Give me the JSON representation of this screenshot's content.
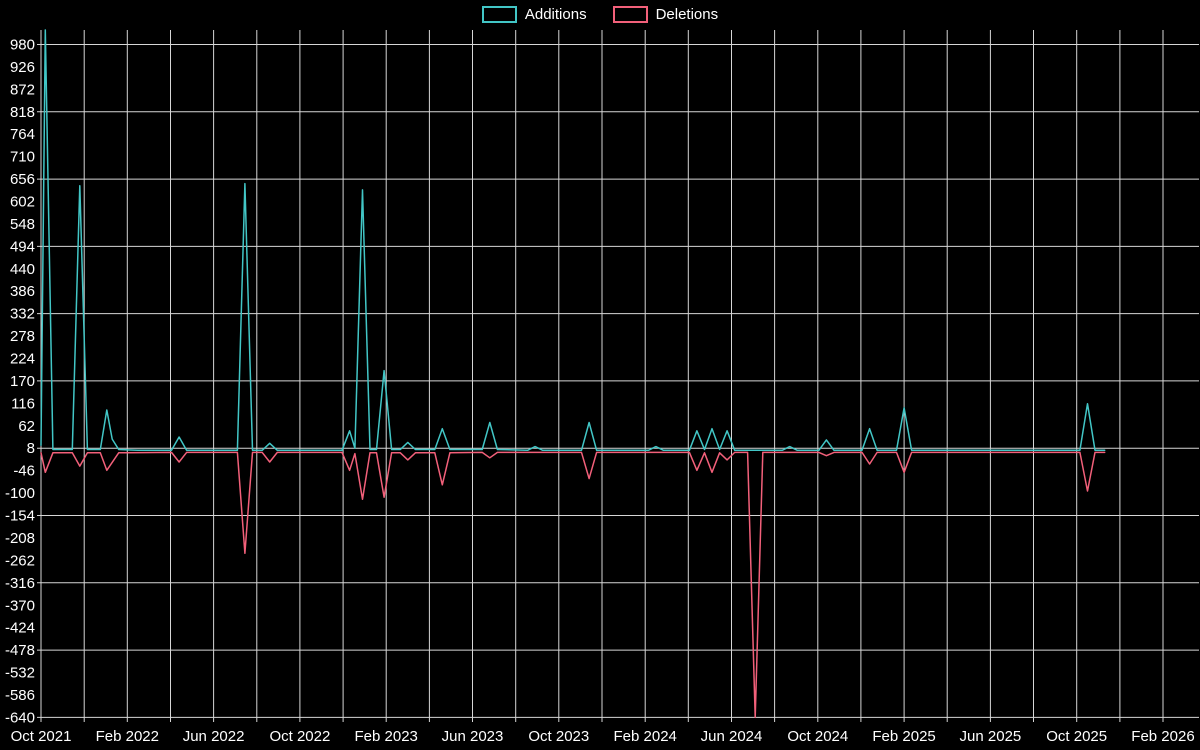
{
  "chart_data": {
    "type": "line",
    "title": "",
    "background_color": "#000000",
    "grid_color": "#d6d6d6",
    "text_color": "#ffffff",
    "legend_position": "top-center",
    "x_axis": {
      "unit": "month",
      "total_months": 52,
      "tick_interval_months": 4,
      "gridline_interval_months": 2,
      "tick_labels": [
        "Oct 2021",
        "Feb 2022",
        "Jun 2022",
        "Oct 2022",
        "Feb 2023",
        "Jun 2023",
        "Oct 2023",
        "Feb 2024",
        "Jun 2024",
        "Oct 2024",
        "Feb 2025",
        "Jun 2025",
        "Oct 2025",
        "Feb 2026"
      ]
    },
    "y_axis": {
      "min": -640,
      "max": 980,
      "tick_step": 54,
      "tick_values": [
        980,
        926,
        872,
        818,
        764,
        710,
        656,
        602,
        548,
        494,
        440,
        386,
        332,
        278,
        224,
        170,
        116,
        62,
        8,
        -46,
        -100,
        -154,
        -208,
        -262,
        -316,
        -370,
        -424,
        -478,
        -532,
        -586,
        -640
      ],
      "gridline_values": [
        980,
        818,
        656,
        494,
        332,
        170,
        8,
        -154,
        -316,
        -478,
        -640
      ]
    },
    "series": [
      {
        "name": "Additions",
        "color": "#42c6c6",
        "points": [
          [
            0,
            15
          ],
          [
            0.2,
            1030
          ],
          [
            0.55,
            5
          ],
          [
            1.45,
            5
          ],
          [
            1.8,
            640
          ],
          [
            2.15,
            5
          ],
          [
            2.75,
            5
          ],
          [
            3.05,
            100
          ],
          [
            3.3,
            30
          ],
          [
            3.6,
            5
          ],
          [
            4.5,
            3
          ],
          [
            6.05,
            3
          ],
          [
            6.4,
            35
          ],
          [
            6.75,
            3
          ],
          [
            9.1,
            3
          ],
          [
            9.45,
            645
          ],
          [
            9.8,
            3
          ],
          [
            10.25,
            3
          ],
          [
            10.6,
            20
          ],
          [
            10.95,
            3
          ],
          [
            13.95,
            3
          ],
          [
            14.3,
            50
          ],
          [
            14.55,
            8
          ],
          [
            14.9,
            630
          ],
          [
            15.25,
            5
          ],
          [
            15.55,
            5
          ],
          [
            15.9,
            195
          ],
          [
            16.25,
            5
          ],
          [
            16.65,
            5
          ],
          [
            17.0,
            22
          ],
          [
            17.35,
            5
          ],
          [
            18.25,
            5
          ],
          [
            18.6,
            55
          ],
          [
            18.95,
            5
          ],
          [
            20.45,
            5
          ],
          [
            20.8,
            70
          ],
          [
            21.15,
            5
          ],
          [
            22.55,
            3
          ],
          [
            22.9,
            12
          ],
          [
            23.25,
            3
          ],
          [
            25.05,
            3
          ],
          [
            25.4,
            70
          ],
          [
            25.75,
            3
          ],
          [
            28.15,
            3
          ],
          [
            28.5,
            12
          ],
          [
            28.85,
            3
          ],
          [
            30.05,
            3
          ],
          [
            30.4,
            50
          ],
          [
            30.75,
            5
          ],
          [
            31.1,
            55
          ],
          [
            31.45,
            5
          ],
          [
            31.8,
            50
          ],
          [
            32.15,
            3
          ],
          [
            34.35,
            3
          ],
          [
            34.7,
            12
          ],
          [
            35.05,
            3
          ],
          [
            36.05,
            3
          ],
          [
            36.4,
            28
          ],
          [
            36.75,
            3
          ],
          [
            38.05,
            3
          ],
          [
            38.4,
            55
          ],
          [
            38.75,
            3
          ],
          [
            39.65,
            3
          ],
          [
            40.0,
            105
          ],
          [
            40.35,
            3
          ],
          [
            48.15,
            3
          ],
          [
            48.5,
            115
          ],
          [
            48.85,
            3
          ],
          [
            49.3,
            3
          ]
        ]
      },
      {
        "name": "Deletions",
        "color": "#f2607a",
        "points": [
          [
            0,
            -3
          ],
          [
            0.2,
            -50
          ],
          [
            0.55,
            -3
          ],
          [
            1.45,
            -3
          ],
          [
            1.8,
            -35
          ],
          [
            2.15,
            -3
          ],
          [
            2.75,
            -3
          ],
          [
            3.05,
            -45
          ],
          [
            3.6,
            -3
          ],
          [
            6.05,
            -2
          ],
          [
            6.4,
            -25
          ],
          [
            6.75,
            -2
          ],
          [
            9.1,
            -2
          ],
          [
            9.45,
            -245
          ],
          [
            9.8,
            -2
          ],
          [
            10.25,
            -2
          ],
          [
            10.6,
            -25
          ],
          [
            10.95,
            -2
          ],
          [
            13.95,
            -2
          ],
          [
            14.3,
            -45
          ],
          [
            14.55,
            -5
          ],
          [
            14.9,
            -115
          ],
          [
            15.25,
            -3
          ],
          [
            15.55,
            -3
          ],
          [
            15.9,
            -110
          ],
          [
            16.25,
            -3
          ],
          [
            16.65,
            -3
          ],
          [
            17.0,
            -20
          ],
          [
            17.35,
            -3
          ],
          [
            18.25,
            -3
          ],
          [
            18.6,
            -80
          ],
          [
            18.95,
            -3
          ],
          [
            20.45,
            -2
          ],
          [
            20.8,
            -15
          ],
          [
            21.15,
            -2
          ],
          [
            25.05,
            -2
          ],
          [
            25.4,
            -65
          ],
          [
            25.75,
            -2
          ],
          [
            30.05,
            -2
          ],
          [
            30.4,
            -45
          ],
          [
            30.75,
            -3
          ],
          [
            31.1,
            -50
          ],
          [
            31.45,
            -3
          ],
          [
            31.8,
            -20
          ],
          [
            32.15,
            -2
          ],
          [
            32.75,
            -2
          ],
          [
            33.1,
            -640
          ],
          [
            33.45,
            -2
          ],
          [
            36.05,
            -2
          ],
          [
            36.4,
            -10
          ],
          [
            36.75,
            -2
          ],
          [
            38.05,
            -2
          ],
          [
            38.4,
            -30
          ],
          [
            38.75,
            -2
          ],
          [
            39.65,
            -2
          ],
          [
            40.0,
            -50
          ],
          [
            40.35,
            -2
          ],
          [
            48.15,
            -2
          ],
          [
            48.5,
            -95
          ],
          [
            48.85,
            -2
          ],
          [
            49.3,
            -2
          ]
        ]
      }
    ]
  }
}
